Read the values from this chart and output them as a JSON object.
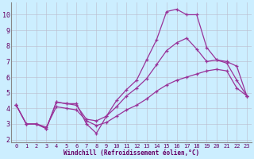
{
  "xlabel": "Windchill (Refroidissement éolien,°C)",
  "background_color": "#cceeff",
  "grid_color": "#bbbbcc",
  "line_color": "#993399",
  "xlim": [
    -0.5,
    23.5
  ],
  "ylim": [
    1.8,
    10.8
  ],
  "yticks": [
    2,
    3,
    4,
    5,
    6,
    7,
    8,
    9,
    10
  ],
  "xticks": [
    0,
    1,
    2,
    3,
    4,
    5,
    6,
    7,
    8,
    9,
    10,
    11,
    12,
    13,
    14,
    15,
    16,
    17,
    18,
    19,
    20,
    21,
    22,
    23
  ],
  "line1_x": [
    0,
    1,
    2,
    3,
    4,
    5,
    6,
    7,
    8,
    9,
    10,
    11,
    12,
    13,
    14,
    15,
    16,
    17,
    18,
    19,
    20,
    21,
    22,
    23
  ],
  "line1_y": [
    4.2,
    3.0,
    3.0,
    2.7,
    4.4,
    4.3,
    4.3,
    3.0,
    2.4,
    3.5,
    4.5,
    5.2,
    5.8,
    7.1,
    8.4,
    10.2,
    10.35,
    10.0,
    10.0,
    7.9,
    7.1,
    6.9,
    5.8,
    4.8
  ],
  "line2_x": [
    0,
    1,
    2,
    3,
    4,
    5,
    6,
    7,
    8,
    9,
    10,
    11,
    12,
    13,
    14,
    15,
    16,
    17,
    18,
    19,
    20,
    21,
    22,
    23
  ],
  "line2_y": [
    4.2,
    3.0,
    3.0,
    2.7,
    4.4,
    4.3,
    4.2,
    3.3,
    3.2,
    3.5,
    4.1,
    4.8,
    5.3,
    5.9,
    6.8,
    7.7,
    8.2,
    8.5,
    7.8,
    7.0,
    7.1,
    7.0,
    6.7,
    4.8
  ],
  "line3_x": [
    0,
    1,
    2,
    3,
    4,
    5,
    6,
    7,
    8,
    9,
    10,
    11,
    12,
    13,
    14,
    15,
    16,
    17,
    18,
    19,
    20,
    21,
    22,
    23
  ],
  "line3_y": [
    4.2,
    3.0,
    3.0,
    2.8,
    4.1,
    4.0,
    3.9,
    3.2,
    2.9,
    3.1,
    3.5,
    3.9,
    4.2,
    4.6,
    5.1,
    5.5,
    5.8,
    6.0,
    6.2,
    6.4,
    6.5,
    6.4,
    5.3,
    4.8
  ]
}
